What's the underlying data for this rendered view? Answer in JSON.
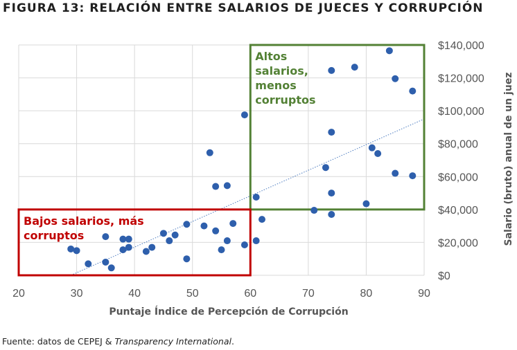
{
  "title": "FIGURA 13: RELACIÓN ENTRE SALARIOS DE JUECES Y CORRUPCIÓN",
  "source": {
    "prefix": "Fuente: datos de CEPEJ & ",
    "italic": "Transparency International",
    "suffix": "."
  },
  "colors": {
    "points": "#2e5fac",
    "trendline": "#4a7abf",
    "green_box": "#538135",
    "red_box": "#c00000",
    "grid": "#d9d9d9"
  },
  "chart_data": {
    "type": "scatter",
    "xlabel": "Puntaje Índice de Percepción de Corrupción",
    "ylabel": "Salario (bruto) anual de un juez",
    "xlim": [
      20,
      90
    ],
    "ylim": [
      0,
      140000
    ],
    "x_ticks": [
      20,
      30,
      40,
      50,
      60,
      70,
      80,
      90
    ],
    "y_ticks": [
      0,
      20000,
      40000,
      60000,
      80000,
      100000,
      120000,
      140000
    ],
    "y_tick_labels": [
      "$0",
      "$20,000",
      "$40,000",
      "$60,000",
      "$80,000",
      "$100,000",
      "$120,000",
      "$140,000"
    ],
    "y_axis_side": "right",
    "grid": true,
    "trendline": {
      "x": [
        29,
        90
      ],
      "y": [
        0,
        95000
      ],
      "style": "dotted"
    },
    "points": [
      {
        "x": 29,
        "y": 16000
      },
      {
        "x": 30,
        "y": 15000
      },
      {
        "x": 32,
        "y": 7000
      },
      {
        "x": 35,
        "y": 23500
      },
      {
        "x": 35,
        "y": 8000
      },
      {
        "x": 36,
        "y": 4500
      },
      {
        "x": 38,
        "y": 22000
      },
      {
        "x": 38,
        "y": 15500
      },
      {
        "x": 39,
        "y": 22000
      },
      {
        "x": 39,
        "y": 17000
      },
      {
        "x": 42,
        "y": 14500
      },
      {
        "x": 43,
        "y": 17000
      },
      {
        "x": 45,
        "y": 25500
      },
      {
        "x": 46,
        "y": 21000
      },
      {
        "x": 47,
        "y": 24500
      },
      {
        "x": 49,
        "y": 31000
      },
      {
        "x": 49,
        "y": 10000
      },
      {
        "x": 52,
        "y": 30000
      },
      {
        "x": 53,
        "y": 74500
      },
      {
        "x": 54,
        "y": 54000
      },
      {
        "x": 54,
        "y": 27000
      },
      {
        "x": 55,
        "y": 15500
      },
      {
        "x": 56,
        "y": 54500
      },
      {
        "x": 56,
        "y": 21000
      },
      {
        "x": 57,
        "y": 31500
      },
      {
        "x": 59,
        "y": 97500
      },
      {
        "x": 59,
        "y": 18500
      },
      {
        "x": 61,
        "y": 47500
      },
      {
        "x": 61,
        "y": 21000
      },
      {
        "x": 62,
        "y": 34000
      },
      {
        "x": 71,
        "y": 39500
      },
      {
        "x": 73,
        "y": 65500
      },
      {
        "x": 74,
        "y": 124500
      },
      {
        "x": 74,
        "y": 87000
      },
      {
        "x": 74,
        "y": 50000
      },
      {
        "x": 74,
        "y": 37000
      },
      {
        "x": 78,
        "y": 126500
      },
      {
        "x": 80,
        "y": 43500
      },
      {
        "x": 81,
        "y": 77500
      },
      {
        "x": 82,
        "y": 74000
      },
      {
        "x": 84,
        "y": 136500
      },
      {
        "x": 85,
        "y": 119500
      },
      {
        "x": 85,
        "y": 62000
      },
      {
        "x": 88,
        "y": 112000
      },
      {
        "x": 88,
        "y": 60500
      }
    ],
    "annotations": [
      {
        "id": "high",
        "lines": [
          "Altos",
          "salarios,",
          "menos",
          "corruptos"
        ],
        "x_range": [
          60,
          90
        ],
        "y_range": [
          40000,
          140000
        ],
        "color": "#538135"
      },
      {
        "id": "low",
        "lines": [
          "Bajos salarios, más",
          "corruptos"
        ],
        "x_range": [
          20,
          60
        ],
        "y_range": [
          0,
          40000
        ],
        "color": "#c00000"
      }
    ]
  }
}
